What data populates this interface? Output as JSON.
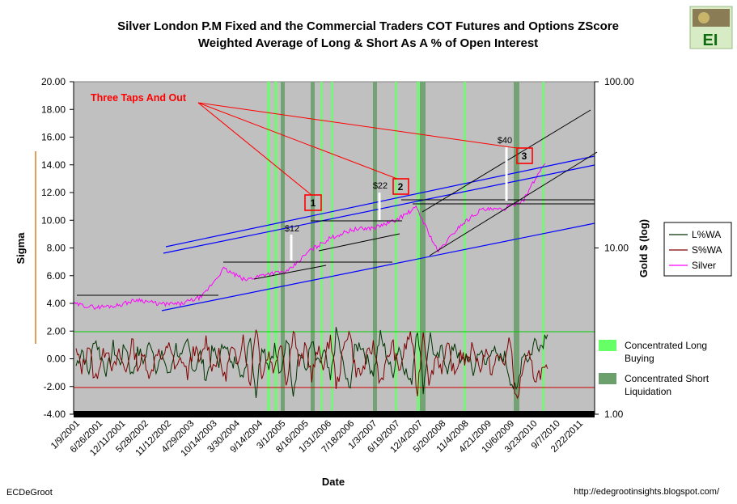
{
  "chart_data": {
    "type": "line",
    "title": "Silver London P.M Fixed and the Commercial Traders COT Futures and Options ZScore",
    "subtitle": "Weighted Average of Long & Short As A % of Open Interest",
    "xlabel": "Date",
    "ylabel": "Sigma",
    "y2label": "Gold $ (log)",
    "ylim": [
      -4,
      20
    ],
    "y2lim": [
      1,
      100
    ],
    "y2scale": "log",
    "yticks": [
      "20.00",
      "18.00",
      "16.00",
      "14.00",
      "12.00",
      "10.00",
      "8.00",
      "6.00",
      "4.00",
      "2.00",
      "0.00",
      "-2.00",
      "-4.00"
    ],
    "y2ticks": [
      "100.00",
      "10.00",
      "1.00"
    ],
    "xticks": [
      "1/9/2001",
      "6/26/2001",
      "12/11/2001",
      "5/28/2002",
      "11/12/2002",
      "4/29/2003",
      "10/14/2003",
      "3/30/2004",
      "9/14/2004",
      "3/1/2005",
      "8/16/2005",
      "1/31/2006",
      "7/18/2006",
      "1/3/2007",
      "6/19/2007",
      "12/4/2007",
      "5/20/2008",
      "11/4/2008",
      "4/21/2009",
      "10/6/2009",
      "3/23/2010",
      "9/7/2010",
      "2/22/2011"
    ],
    "series": [
      {
        "name": "L%WA",
        "color": "#003300",
        "axis": "left",
        "values": [
          -0.5,
          0.8,
          -1.2,
          1.6,
          0.2,
          -1.0,
          0.9,
          -0.4,
          1.1,
          -1.3,
          0.6,
          -0.2,
          1.4,
          -0.8,
          0.3,
          -1.4,
          1.0,
          -0.1,
          1.2,
          -0.9,
          0.4,
          -1.5,
          0.7,
          -0.3,
          1.5,
          -0.7,
          0.2,
          -1.8,
          2.2,
          -2.6,
          1.3,
          -0.5,
          0.9,
          -1.6,
          2.0,
          -2.4,
          0.6,
          -0.9,
          1.2,
          -0.6,
          0.5,
          -1.7,
          2.1,
          -0.4,
          -2.3,
          0.8,
          1.1,
          -0.2,
          -1.0,
          1.7,
          0.4,
          -1.2,
          1.0,
          -0.7,
          -2.0,
          2.6,
          -2.2,
          1.9,
          -0.3,
          0.7,
          -0.9,
          1.3,
          -0.5,
          0.4,
          -1.1,
          0.8,
          -0.6,
          1.0,
          -0.2,
          0.3,
          -1.4,
          -2.6,
          0.6,
          -0.1,
          1.4,
          0.9,
          2.2
        ]
      },
      {
        "name": "S%WA",
        "color": "#800000",
        "axis": "left",
        "values": [
          0.5,
          -0.8,
          1.2,
          -1.6,
          -0.2,
          1.0,
          -0.9,
          0.4,
          -1.1,
          1.3,
          -0.6,
          0.2,
          -1.4,
          0.8,
          -0.3,
          1.4,
          -1.0,
          0.1,
          -1.2,
          0.9,
          -0.4,
          1.5,
          -0.7,
          0.3,
          -1.5,
          0.7,
          -0.2,
          1.8,
          -2.2,
          2.6,
          -1.3,
          0.5,
          -0.9,
          1.6,
          -2.0,
          2.4,
          -0.6,
          0.9,
          -1.2,
          0.6,
          -0.5,
          1.7,
          -2.1,
          0.4,
          2.3,
          -0.8,
          -1.1,
          0.2,
          1.0,
          -1.7,
          -0.4,
          1.2,
          -1.0,
          0.7,
          2.0,
          -2.6,
          2.2,
          -1.9,
          0.3,
          -0.7,
          0.9,
          -1.3,
          0.5,
          -0.4,
          1.1,
          -0.8,
          0.6,
          -1.0,
          0.2,
          -0.3,
          1.4,
          -3.4,
          -0.6,
          0.1,
          -1.4,
          -0.9,
          -1.0
        ]
      },
      {
        "name": "Silver",
        "color": "#ff00ff",
        "axis": "right",
        "x_dates": [
          "1/9/2001",
          "6/26/2001",
          "12/11/2001",
          "5/28/2002",
          "11/12/2002",
          "4/29/2003",
          "10/14/2003",
          "3/30/2004",
          "9/14/2004",
          "3/1/2005",
          "8/16/2005",
          "1/31/2006",
          "7/18/2006",
          "1/3/2007",
          "6/19/2007",
          "12/4/2007",
          "5/20/2008",
          "11/4/2008",
          "4/21/2009",
          "10/6/2009",
          "3/23/2010",
          "9/7/2010",
          "2/22/2011"
        ],
        "values": [
          4.6,
          4.4,
          4.5,
          4.9,
          4.6,
          4.6,
          5.1,
          7.5,
          6.4,
          7.0,
          7.2,
          9.6,
          11.5,
          12.9,
          13.2,
          14.6,
          17.5,
          9.5,
          13.5,
          17.0,
          17.0,
          19.5,
          33.0
        ]
      }
    ],
    "annotations": [
      {
        "text": "Three Taps And Out",
        "color": "#ff0000"
      },
      {
        "text": "1"
      },
      {
        "text": "2"
      },
      {
        "text": "3"
      },
      {
        "text": "$12"
      },
      {
        "text": "$22"
      },
      {
        "text": "$40"
      }
    ],
    "legend": {
      "placement": "right",
      "entries": [
        "L%WA",
        "S%WA",
        "Silver"
      ],
      "shade_entries": [
        {
          "label_line1": "Concentrated Long",
          "label_line2": "Buying",
          "color": "#66ff66"
        },
        {
          "label_line1": "Concentrated Short",
          "label_line2": "Liquidation",
          "color": "#6b9f6b"
        }
      ]
    },
    "grid": false
  },
  "footer": {
    "left": "ECDeGroot",
    "right": "http://edegrootinsights.blogspot.com/"
  },
  "logo": {
    "text": "EI"
  }
}
